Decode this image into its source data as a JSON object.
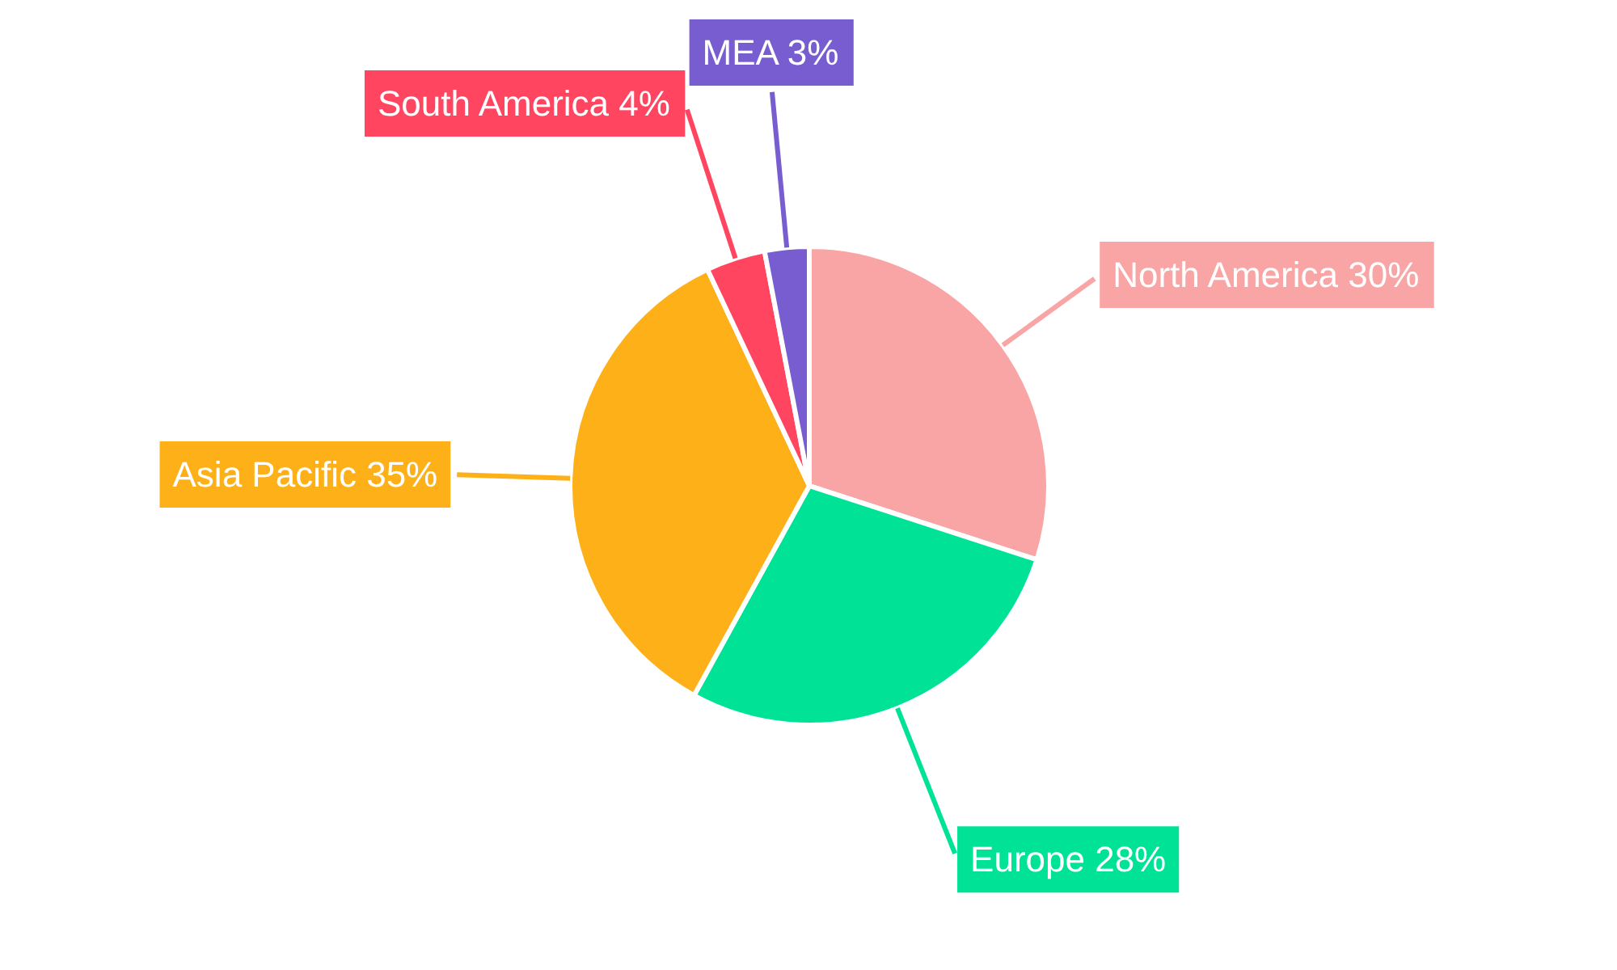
{
  "chart_data": {
    "type": "pie",
    "categories": [
      "North America",
      "Europe",
      "Asia Pacific",
      "South America",
      "MEA"
    ],
    "values": [
      30,
      28,
      35,
      4,
      3
    ],
    "value_labels": [
      "30%",
      "28%",
      "35%",
      "4%",
      "3%"
    ],
    "colors": [
      "#f9a5a5",
      "#00e396",
      "#feb019",
      "#ff4560",
      "#775dd0"
    ]
  }
}
